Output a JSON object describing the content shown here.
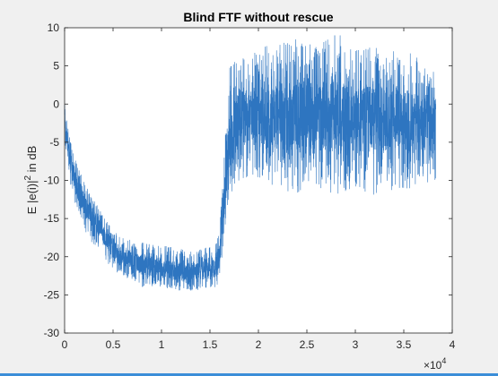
{
  "chart_data": {
    "type": "line",
    "title": "Blind FTF without rescue",
    "xlabel": "",
    "ylabel": "E |e(i)| 2 in dB",
    "ylabel_parts": {
      "prefix": "E |e(i)|",
      "superscript": "2",
      "suffix": " in dB"
    },
    "xlim": [
      0,
      40000
    ],
    "ylim": [
      -30,
      10
    ],
    "x_ticks": [
      0,
      5000,
      10000,
      15000,
      20000,
      25000,
      30000,
      35000,
      40000
    ],
    "x_tick_labels": [
      "0",
      "0.5",
      "1",
      "1.5",
      "2",
      "2.5",
      "3",
      "3.5",
      "4"
    ],
    "x_exponent_label": {
      "base": "×10",
      "exponent": "4"
    },
    "y_ticks": [
      -30,
      -25,
      -20,
      -15,
      -10,
      -5,
      0,
      5,
      10
    ],
    "y_tick_labels": [
      "-30",
      "-25",
      "-20",
      "-15",
      "-10",
      "-5",
      "0",
      "5",
      "10"
    ],
    "grid": false,
    "line_color": "#2e75c0",
    "series": [
      {
        "x": [
          0,
          500,
          1000,
          2000,
          3000,
          4000,
          5000,
          6000,
          8000,
          10000,
          12000,
          14000,
          15500,
          16000,
          16500,
          17000,
          18000,
          20000,
          22000,
          24000,
          26000,
          28000,
          30000,
          32000,
          34000,
          36000,
          38300
        ],
        "mean": [
          -2,
          -7,
          -10,
          -13,
          -15,
          -17,
          -19,
          -20,
          -21,
          -21.5,
          -22,
          -22,
          -21.5,
          -20,
          -12,
          -5,
          -2,
          -1.5,
          -1.5,
          -1.5,
          -1.5,
          -1.5,
          -2,
          -2,
          -2,
          -2.5,
          -3
        ],
        "upper": [
          0,
          -4,
          -7,
          -10,
          -12.5,
          -14.5,
          -16.5,
          -17.5,
          -18,
          -18.5,
          -19,
          -19,
          -18.5,
          -16,
          -6,
          5,
          6,
          7,
          8.5,
          8.5,
          7.5,
          9.5,
          7.5,
          8,
          7,
          7,
          4
        ],
        "lower": [
          -5,
          -10,
          -13,
          -16.5,
          -18.5,
          -20,
          -22,
          -22.5,
          -24,
          -24,
          -24.5,
          -24.5,
          -24,
          -24,
          -17,
          -12,
          -10,
          -10,
          -11,
          -12,
          -11.5,
          -12,
          -11,
          -12,
          -11.5,
          -11,
          -10
        ]
      }
    ]
  }
}
